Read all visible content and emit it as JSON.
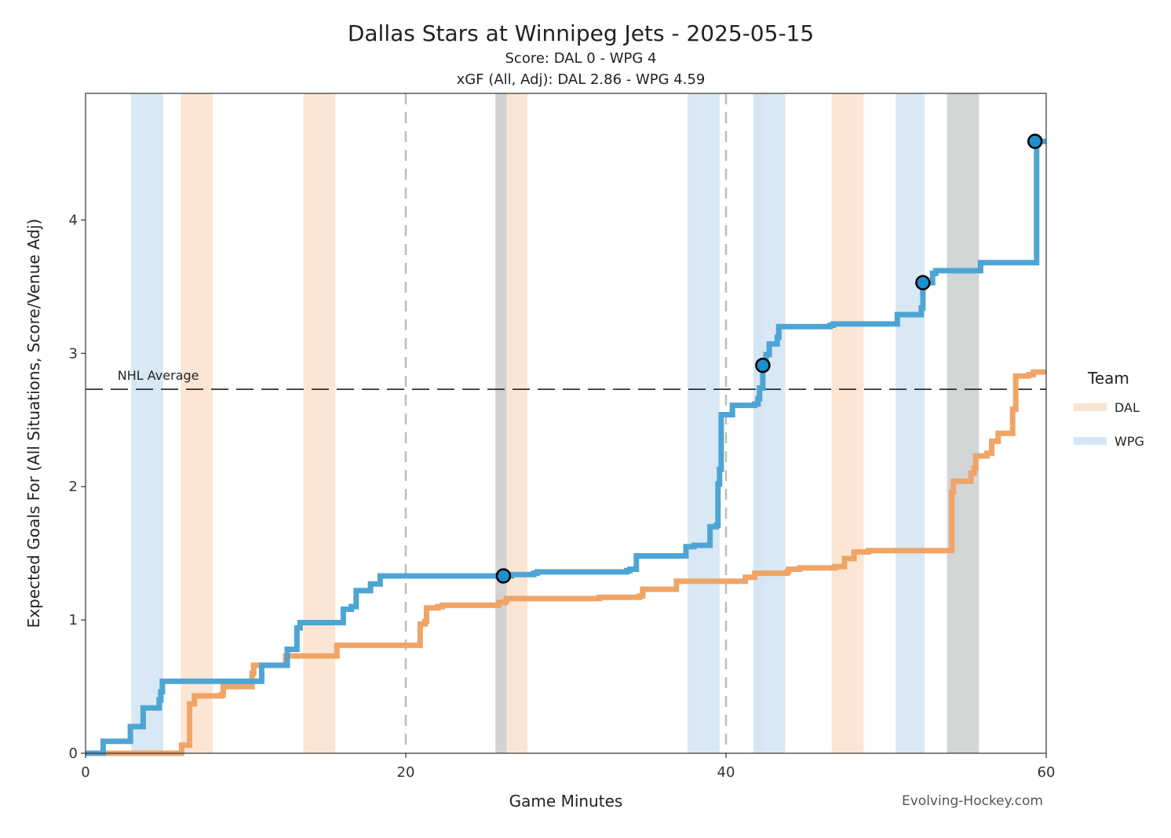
{
  "chart_data": {
    "type": "line",
    "title": "Dallas Stars at Winnipeg Jets - 2025-05-15",
    "subtitle_score": "Score: DAL 0 - WPG 4",
    "subtitle_xgf": "xGF (All, Adj): DAL 2.86 - WPG 4.59",
    "xlabel": "Game Minutes",
    "ylabel": "Expected Goals For (All Situations, Score/Venue Adj)",
    "xlim": [
      0,
      60
    ],
    "ylim": [
      0,
      4.95
    ],
    "xticks": [
      0,
      20,
      40,
      60
    ],
    "yticks": [
      0,
      1,
      2,
      3,
      4
    ],
    "period_lines": [
      20,
      40
    ],
    "nhl_average": {
      "value": 2.73,
      "label": "NHL Average"
    },
    "legend": {
      "title": "Team",
      "position": "right",
      "entries": [
        {
          "label": "DAL",
          "color": "#fbe3d2"
        },
        {
          "label": "WPG",
          "color": "#d4e6f3"
        }
      ]
    },
    "source_credit": "Evolving-Hockey.com",
    "colors": {
      "DAL_line": "#f0a466",
      "WPG_line": "#4ea5d4",
      "DAL_band": "#fbe3d2",
      "WPG_band": "#d4e6f3",
      "even_band": "#cdd1d2",
      "goal_marker": "#1f8fcb"
    },
    "bands": [
      {
        "team": "WPG",
        "start": 2.85,
        "end": 4.85
      },
      {
        "team": "DAL",
        "start": 5.95,
        "end": 7.95
      },
      {
        "team": "DAL",
        "start": 13.6,
        "end": 15.6
      },
      {
        "team": "DAL",
        "start": 25.6,
        "end": 27.6
      },
      {
        "team": "EVEN",
        "start": 25.6,
        "end": 26.3
      },
      {
        "team": "WPG",
        "start": 37.6,
        "end": 39.6
      },
      {
        "team": "WPG",
        "start": 41.7,
        "end": 43.7
      },
      {
        "team": "WPG",
        "start": 41.8,
        "end": 42.4
      },
      {
        "team": "DAL",
        "start": 46.6,
        "end": 48.6
      },
      {
        "team": "WPG",
        "start": 50.6,
        "end": 52.4
      },
      {
        "team": "EVEN",
        "start": 53.8,
        "end": 55.8
      }
    ],
    "series": [
      {
        "name": "WPG",
        "points": [
          [
            0,
            0
          ],
          [
            1.1,
            0.09
          ],
          [
            2.8,
            0.2
          ],
          [
            3.6,
            0.34
          ],
          [
            4.6,
            0.4
          ],
          [
            4.7,
            0.46
          ],
          [
            4.8,
            0.54
          ],
          [
            10.8,
            0.54
          ],
          [
            11.0,
            0.66
          ],
          [
            12.5,
            0.66
          ],
          [
            12.6,
            0.78
          ],
          [
            13.1,
            0.78
          ],
          [
            13.2,
            0.94
          ],
          [
            13.4,
            0.98
          ],
          [
            15.5,
            0.98
          ],
          [
            16.1,
            1.08
          ],
          [
            16.6,
            1.1
          ],
          [
            16.9,
            1.22
          ],
          [
            17.8,
            1.27
          ],
          [
            18.4,
            1.33
          ],
          [
            26.5,
            1.33
          ],
          [
            26.6,
            1.34
          ],
          [
            28.0,
            1.35
          ],
          [
            28.2,
            1.36
          ],
          [
            33.8,
            1.37
          ],
          [
            34.0,
            1.38
          ],
          [
            34.4,
            1.48
          ],
          [
            37.3,
            1.48
          ],
          [
            37.5,
            1.55
          ],
          [
            38.0,
            1.56
          ],
          [
            38.9,
            1.56
          ],
          [
            39.0,
            1.7
          ],
          [
            39.4,
            1.71
          ],
          [
            39.5,
            2.02
          ],
          [
            39.6,
            2.13
          ],
          [
            39.7,
            2.54
          ],
          [
            40.4,
            2.61
          ],
          [
            41.8,
            2.62
          ],
          [
            42.0,
            2.66
          ],
          [
            42.1,
            2.74
          ],
          [
            42.3,
            2.91
          ],
          [
            42.5,
            2.99
          ],
          [
            42.7,
            3.07
          ],
          [
            43.2,
            3.12
          ],
          [
            43.3,
            3.2
          ],
          [
            46.5,
            3.21
          ],
          [
            46.7,
            3.22
          ],
          [
            50.6,
            3.22
          ],
          [
            50.7,
            3.29
          ],
          [
            52.2,
            3.34
          ],
          [
            52.3,
            3.53
          ],
          [
            52.9,
            3.6
          ],
          [
            53.1,
            3.62
          ],
          [
            55.8,
            3.62
          ],
          [
            55.9,
            3.68
          ],
          [
            59.3,
            3.68
          ],
          [
            59.4,
            4.59
          ],
          [
            60,
            4.59
          ]
        ]
      },
      {
        "name": "DAL",
        "points": [
          [
            0,
            0
          ],
          [
            5.9,
            0
          ],
          [
            6.0,
            0.06
          ],
          [
            6.4,
            0.06
          ],
          [
            6.5,
            0.37
          ],
          [
            6.7,
            0.37
          ],
          [
            6.8,
            0.43
          ],
          [
            8.5,
            0.44
          ],
          [
            8.6,
            0.5
          ],
          [
            10.3,
            0.5
          ],
          [
            10.4,
            0.6
          ],
          [
            10.5,
            0.66
          ],
          [
            12.4,
            0.66
          ],
          [
            12.5,
            0.73
          ],
          [
            15.6,
            0.73
          ],
          [
            15.7,
            0.81
          ],
          [
            20.8,
            0.81
          ],
          [
            20.9,
            0.97
          ],
          [
            21.2,
            0.99
          ],
          [
            21.3,
            1.09
          ],
          [
            22.0,
            1.1
          ],
          [
            22.3,
            1.11
          ],
          [
            25.7,
            1.11
          ],
          [
            25.8,
            1.13
          ],
          [
            26.2,
            1.14
          ],
          [
            26.3,
            1.16
          ],
          [
            31.9,
            1.16
          ],
          [
            32.1,
            1.17
          ],
          [
            34.6,
            1.18
          ],
          [
            34.8,
            1.23
          ],
          [
            36.8,
            1.23
          ],
          [
            36.9,
            1.29
          ],
          [
            41.0,
            1.29
          ],
          [
            41.2,
            1.32
          ],
          [
            41.8,
            1.35
          ],
          [
            43.8,
            1.36
          ],
          [
            43.9,
            1.38
          ],
          [
            44.6,
            1.39
          ],
          [
            46.8,
            1.4
          ],
          [
            47.3,
            1.4
          ],
          [
            47.4,
            1.46
          ],
          [
            47.9,
            1.46
          ],
          [
            48.0,
            1.51
          ],
          [
            48.9,
            1.52
          ],
          [
            54.0,
            1.52
          ],
          [
            54.1,
            1.96
          ],
          [
            54.2,
            2.04
          ],
          [
            55.2,
            2.04
          ],
          [
            55.3,
            2.1
          ],
          [
            55.5,
            2.14
          ],
          [
            55.6,
            2.23
          ],
          [
            56.3,
            2.25
          ],
          [
            56.6,
            2.34
          ],
          [
            57.0,
            2.4
          ],
          [
            57.8,
            2.4
          ],
          [
            57.9,
            2.58
          ],
          [
            58.1,
            2.83
          ],
          [
            58.9,
            2.84
          ],
          [
            59.2,
            2.86
          ],
          [
            60,
            2.86
          ]
        ]
      }
    ],
    "goals": [
      {
        "team": "WPG",
        "x": 26.1,
        "y": 1.33
      },
      {
        "team": "WPG",
        "x": 42.3,
        "y": 2.91
      },
      {
        "team": "WPG",
        "x": 52.3,
        "y": 3.53
      },
      {
        "team": "WPG",
        "x": 59.3,
        "y": 4.59
      }
    ]
  }
}
